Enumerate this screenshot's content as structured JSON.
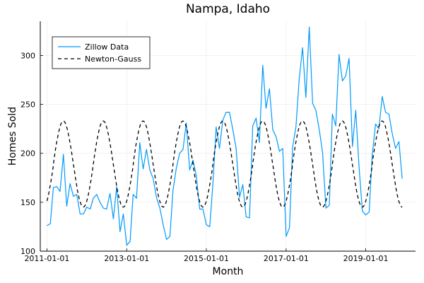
{
  "chart_data": {
    "type": "line",
    "title": "Nampa, Idaho",
    "xlabel": "Month",
    "ylabel": "Homes Sold",
    "xlim": [
      "2010-11-01",
      "2020-04-01"
    ],
    "ylim": [
      100,
      335
    ],
    "x_ticks": [
      {
        "date": "2011-01-01",
        "label": "2011-01-01"
      },
      {
        "date": "2013-01-01",
        "label": "2013-01-01"
      },
      {
        "date": "2015-01-01",
        "label": "2015-01-01"
      },
      {
        "date": "2017-01-01",
        "label": "2017-01-01"
      },
      {
        "date": "2019-01-01",
        "label": "2019-01-01"
      }
    ],
    "y_ticks": [
      100,
      150,
      200,
      250,
      300
    ],
    "grid": true,
    "legend": {
      "position": "top-left"
    },
    "series": [
      {
        "name": "Zillow Data",
        "color": "#009af9",
        "style": "solid",
        "x": [
          "2011-01-01",
          "2011-02-01",
          "2011-03-01",
          "2011-04-01",
          "2011-05-01",
          "2011-06-01",
          "2011-07-01",
          "2011-08-01",
          "2011-09-01",
          "2011-10-01",
          "2011-11-01",
          "2011-12-01",
          "2012-01-01",
          "2012-02-01",
          "2012-03-01",
          "2012-04-01",
          "2012-05-01",
          "2012-06-01",
          "2012-07-01",
          "2012-08-01",
          "2012-09-01",
          "2012-10-01",
          "2012-11-01",
          "2012-12-01",
          "2013-01-01",
          "2013-02-01",
          "2013-03-01",
          "2013-04-01",
          "2013-05-01",
          "2013-06-01",
          "2013-07-01",
          "2013-08-01",
          "2013-09-01",
          "2013-10-01",
          "2013-11-01",
          "2013-12-01",
          "2014-01-01",
          "2014-02-01",
          "2014-03-01",
          "2014-04-01",
          "2014-05-01",
          "2014-06-01",
          "2014-07-01",
          "2014-08-01",
          "2014-09-01",
          "2014-10-01",
          "2014-11-01",
          "2014-12-01",
          "2015-01-01",
          "2015-02-01",
          "2015-03-01",
          "2015-04-01",
          "2015-05-01",
          "2015-06-01",
          "2015-07-01",
          "2015-08-01",
          "2015-09-01",
          "2015-10-01",
          "2015-11-01",
          "2015-12-01",
          "2016-01-01",
          "2016-02-01",
          "2016-03-01",
          "2016-04-01",
          "2016-05-01",
          "2016-06-01",
          "2016-07-01",
          "2016-08-01",
          "2016-09-01",
          "2016-10-01",
          "2016-11-01",
          "2016-12-01",
          "2017-01-01",
          "2017-02-01",
          "2017-03-01",
          "2017-04-01",
          "2017-05-01",
          "2017-06-01",
          "2017-07-01",
          "2017-08-01",
          "2017-09-01",
          "2017-10-01",
          "2017-11-01",
          "2017-12-01",
          "2018-01-01",
          "2018-02-01",
          "2018-03-01",
          "2018-04-01",
          "2018-05-01",
          "2018-06-01",
          "2018-07-01",
          "2018-08-01",
          "2018-09-01",
          "2018-10-01",
          "2018-11-01",
          "2018-12-01",
          "2019-01-01",
          "2019-02-01",
          "2019-03-01",
          "2019-04-01",
          "2019-05-01",
          "2019-06-01",
          "2019-07-01",
          "2019-08-01",
          "2019-09-01",
          "2019-10-01",
          "2019-11-01",
          "2019-12-01"
        ],
        "values": [
          126,
          128,
          165,
          166,
          161,
          199,
          146,
          169,
          156,
          158,
          138,
          138,
          145,
          143,
          154,
          158,
          150,
          144,
          143,
          159,
          133,
          166,
          120,
          138,
          106,
          110,
          158,
          154,
          211,
          184,
          204,
          183,
          174,
          155,
          144,
          127,
          112,
          115,
          162,
          185,
          200,
          204,
          231,
          183,
          193,
          177,
          143,
          143,
          127,
          125,
          167,
          227,
          205,
          234,
          242,
          242,
          224,
          205,
          155,
          168,
          135,
          134,
          228,
          236,
          211,
          290,
          246,
          266,
          224,
          217,
          202,
          205,
          115,
          124,
          206,
          227,
          276,
          308,
          257,
          329,
          251,
          244,
          224,
          201,
          144,
          147,
          240,
          228,
          301,
          274,
          279,
          297,
          207,
          244,
          185,
          141,
          137,
          140,
          198,
          230,
          225,
          258,
          242,
          240,
          220,
          205,
          212,
          174
        ]
      },
      {
        "name": "Newton-Gauss",
        "color": "#000000",
        "style": "dashed",
        "model": {
          "form": "a + b*sin(2*pi*(month - phase)/12)",
          "a": 189,
          "b": 44,
          "phase": 2,
          "start": "2011-01-01",
          "end": "2019-12-01"
        }
      }
    ]
  }
}
